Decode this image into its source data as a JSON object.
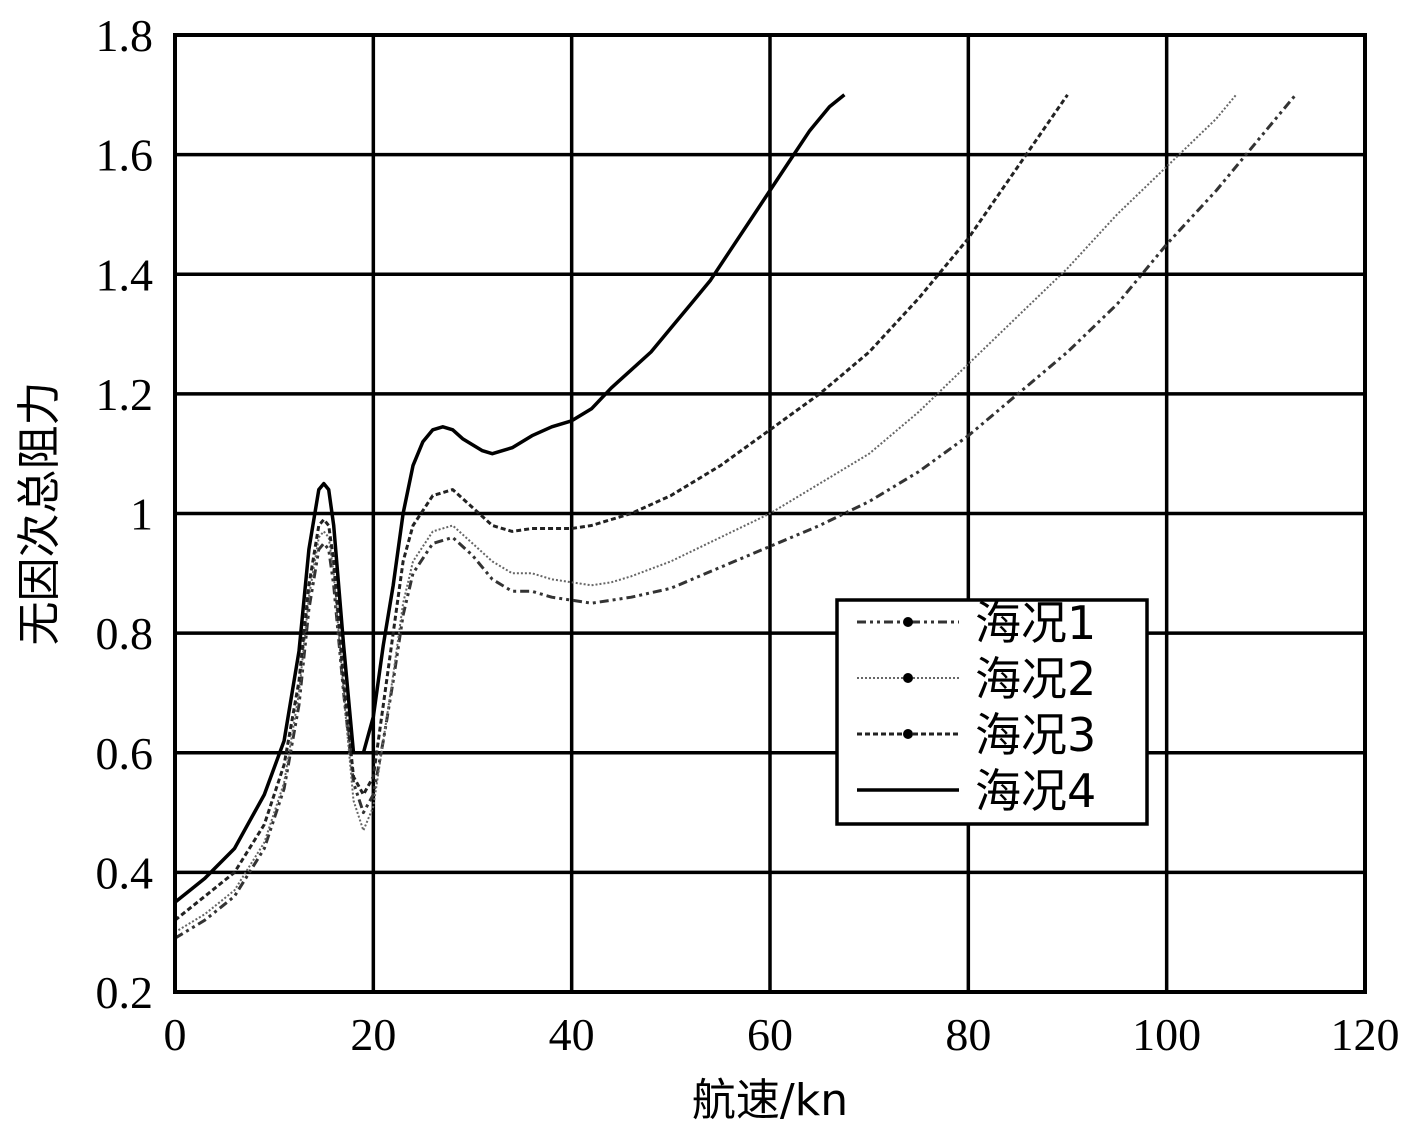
{
  "chart_data": {
    "type": "line",
    "title": "",
    "xlabel": "航速/kn",
    "ylabel": "无因次总阻力",
    "xlim": [
      0,
      120
    ],
    "ylim": [
      0.2,
      1.8
    ],
    "xticks": [
      "0",
      "20",
      "40",
      "60",
      "80",
      "100",
      "120"
    ],
    "yticks": [
      "0.2",
      "0.4",
      "0.6",
      "0.8",
      "1",
      "1.2",
      "1.4",
      "1.6",
      "1.8"
    ],
    "grid": true,
    "legend_position": "center-right",
    "series": [
      {
        "name": "海况1",
        "style": "dash-dot-dot",
        "marker": "dot",
        "stroke_width": 3,
        "x": [
          0,
          3,
          6,
          9,
          11,
          12.5,
          13.5,
          14.5,
          15,
          15.5,
          16,
          17,
          18,
          19,
          20,
          21,
          22,
          23,
          24,
          26,
          28,
          30,
          32,
          34,
          36,
          38,
          40,
          42,
          44,
          46,
          50,
          55,
          60,
          65,
          70,
          75,
          80,
          85,
          90,
          95,
          100,
          105,
          110,
          113
        ],
        "y": [
          0.29,
          0.32,
          0.36,
          0.44,
          0.54,
          0.68,
          0.84,
          0.94,
          0.95,
          0.94,
          0.88,
          0.7,
          0.55,
          0.5,
          0.53,
          0.62,
          0.72,
          0.83,
          0.9,
          0.95,
          0.96,
          0.93,
          0.89,
          0.87,
          0.87,
          0.86,
          0.855,
          0.85,
          0.855,
          0.86,
          0.875,
          0.91,
          0.945,
          0.98,
          1.02,
          1.07,
          1.13,
          1.2,
          1.27,
          1.35,
          1.45,
          1.54,
          1.64,
          1.7
        ]
      },
      {
        "name": "海况2",
        "style": "dotted",
        "marker": "dot",
        "stroke_width": 2,
        "x": [
          0,
          3,
          6,
          9,
          11,
          12.5,
          13.5,
          14.5,
          15,
          15.5,
          16,
          17,
          18,
          19,
          20,
          21,
          22,
          23,
          24,
          26,
          28,
          30,
          32,
          34,
          36,
          38,
          40,
          42,
          44,
          46,
          50,
          55,
          60,
          65,
          70,
          75,
          80,
          85,
          90,
          95,
          100,
          105,
          107
        ],
        "y": [
          0.3,
          0.33,
          0.37,
          0.45,
          0.55,
          0.7,
          0.86,
          0.96,
          0.97,
          0.96,
          0.9,
          0.7,
          0.52,
          0.47,
          0.51,
          0.62,
          0.73,
          0.85,
          0.92,
          0.97,
          0.98,
          0.95,
          0.92,
          0.9,
          0.9,
          0.89,
          0.885,
          0.88,
          0.885,
          0.895,
          0.92,
          0.96,
          1.0,
          1.05,
          1.1,
          1.17,
          1.25,
          1.33,
          1.41,
          1.5,
          1.58,
          1.66,
          1.7
        ]
      },
      {
        "name": "海况3",
        "style": "short-dash",
        "marker": "dot",
        "stroke_width": 3,
        "x": [
          0,
          3,
          6,
          9,
          11,
          12.5,
          13.5,
          14.5,
          15,
          15.5,
          16,
          17,
          18,
          19,
          20,
          21,
          22,
          23,
          24,
          26,
          28,
          30,
          32,
          34,
          36,
          38,
          40,
          42,
          44,
          46,
          50,
          55,
          60,
          65,
          70,
          75,
          80,
          85,
          90
        ],
        "y": [
          0.32,
          0.36,
          0.4,
          0.48,
          0.58,
          0.72,
          0.88,
          0.98,
          0.99,
          0.98,
          0.92,
          0.72,
          0.56,
          0.53,
          0.56,
          0.68,
          0.8,
          0.92,
          0.98,
          1.03,
          1.04,
          1.01,
          0.98,
          0.97,
          0.975,
          0.975,
          0.975,
          0.98,
          0.99,
          1.0,
          1.03,
          1.08,
          1.14,
          1.2,
          1.27,
          1.36,
          1.46,
          1.58,
          1.7
        ]
      },
      {
        "name": "海况4",
        "style": "solid",
        "marker": "none",
        "stroke_width": 3.5,
        "x": [
          0,
          3,
          6,
          9,
          11,
          12.5,
          13.5,
          14.5,
          15,
          15.5,
          16,
          17,
          18,
          19,
          20,
          21,
          22,
          23,
          24,
          25,
          26,
          27,
          28,
          29,
          30,
          31,
          32,
          33,
          34,
          36,
          38,
          40,
          42,
          44,
          46,
          48,
          50,
          52,
          54,
          56,
          58,
          60,
          62,
          64,
          66,
          67.5
        ],
        "y": [
          0.35,
          0.39,
          0.44,
          0.53,
          0.62,
          0.77,
          0.94,
          1.04,
          1.05,
          1.04,
          0.98,
          0.78,
          0.6,
          0.6,
          0.66,
          0.78,
          0.88,
          1.0,
          1.08,
          1.12,
          1.14,
          1.145,
          1.14,
          1.125,
          1.115,
          1.105,
          1.1,
          1.105,
          1.11,
          1.13,
          1.145,
          1.155,
          1.175,
          1.21,
          1.24,
          1.27,
          1.31,
          1.35,
          1.39,
          1.44,
          1.49,
          1.54,
          1.59,
          1.64,
          1.68,
          1.7
        ]
      }
    ]
  }
}
